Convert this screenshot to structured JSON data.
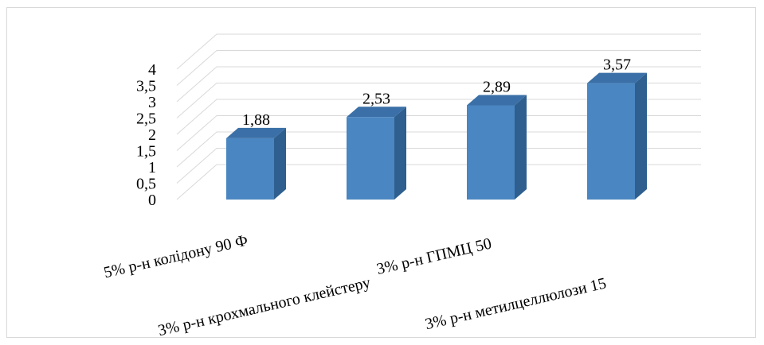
{
  "chart_data": {
    "type": "bar",
    "style": "3d-column",
    "categories": [
      "5% р-н колідону 90 Ф",
      "3% р-н крохмального клейстеру",
      "3% р-н  ГПМЦ 50",
      "3% р-н метилцеллюлози 15"
    ],
    "values": [
      1.88,
      2.53,
      2.89,
      3.57
    ],
    "data_labels": [
      "1,88",
      "2,53",
      "2,89",
      "3,57"
    ],
    "y_ticks": [
      "0",
      "0,5",
      "1",
      "1,5",
      "2",
      "2,5",
      "3",
      "3,5",
      "4"
    ],
    "ylim": [
      0,
      4
    ],
    "grid": true,
    "legend": "none",
    "title": "",
    "xlabel": "",
    "ylabel": "",
    "colors": {
      "bar_front": "#4a86c1",
      "bar_side": "#2f5f8e",
      "bar_top": "#3a70a7",
      "grid": "#d9d9d9",
      "frame": "#d9d9d9"
    }
  }
}
